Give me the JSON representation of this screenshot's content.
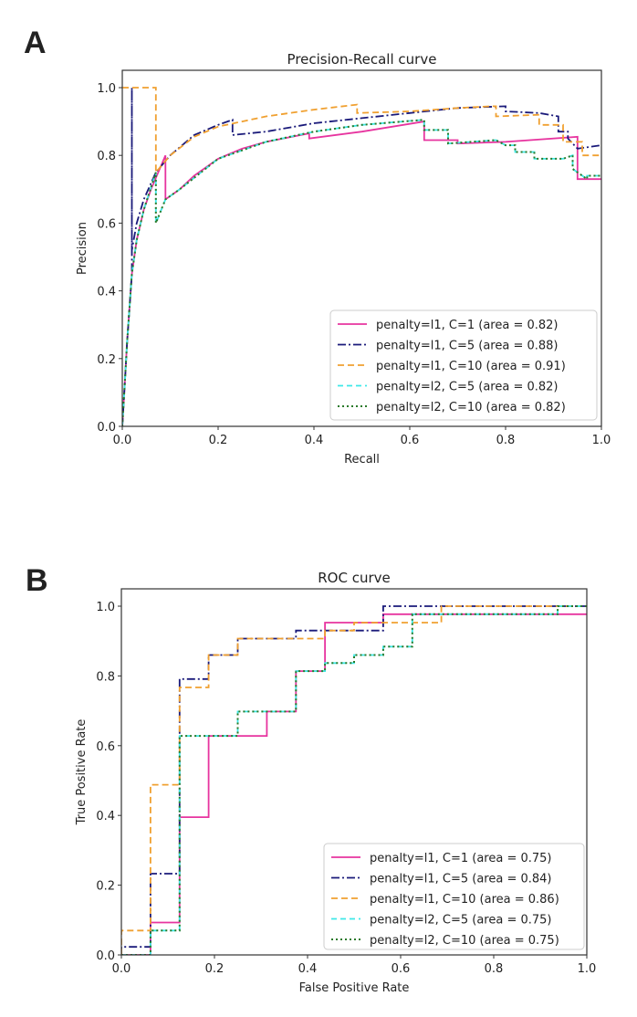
{
  "panels": {
    "a": "A",
    "b": "B"
  },
  "series_styles": [
    {
      "key": "l1_c1",
      "color": "#e7349f",
      "dash": ""
    },
    {
      "key": "l1_c5",
      "color": "#1a1a7a",
      "dash": "9,3,2,3"
    },
    {
      "key": "l1_c10",
      "color": "#f0a030",
      "dash": "7,4"
    },
    {
      "key": "l2_c5",
      "color": "#3ee8e8",
      "dash": "6,4"
    },
    {
      "key": "l2_c10",
      "color": "#2a7a2a",
      "dash": "2,3"
    }
  ],
  "chart_data": [
    {
      "type": "line",
      "title": "Precision-Recall curve",
      "xlabel": "Recall",
      "ylabel": "Precision",
      "xlim": [
        0.0,
        1.0
      ],
      "ylim": [
        0.0,
        1.05
      ],
      "xticks": [
        "0.0",
        "0.2",
        "0.4",
        "0.6",
        "0.8",
        "1.0"
      ],
      "yticks": [
        "0.0",
        "0.2",
        "0.4",
        "0.6",
        "0.8",
        "1.0"
      ],
      "legend_position": "lower-right",
      "series": [
        {
          "name": "penalty=l1, C=1 (area = 0.82)",
          "points": [
            [
              0,
              0
            ],
            [
              0.005,
              0.12
            ],
            [
              0.01,
              0.25
            ],
            [
              0.02,
              0.45
            ],
            [
              0.03,
              0.55
            ],
            [
              0.045,
              0.64
            ],
            [
              0.06,
              0.7
            ],
            [
              0.075,
              0.75
            ],
            [
              0.09,
              0.8
            ],
            [
              0.09,
              0.67
            ],
            [
              0.12,
              0.7
            ],
            [
              0.15,
              0.74
            ],
            [
              0.2,
              0.79
            ],
            [
              0.25,
              0.82
            ],
            [
              0.3,
              0.84
            ],
            [
              0.39,
              0.865
            ],
            [
              0.39,
              0.85
            ],
            [
              0.5,
              0.87
            ],
            [
              0.63,
              0.9
            ],
            [
              0.63,
              0.845
            ],
            [
              0.7,
              0.845
            ],
            [
              0.7,
              0.835
            ],
            [
              0.8,
              0.84
            ],
            [
              0.95,
              0.855
            ],
            [
              0.95,
              0.73
            ],
            [
              1.0,
              0.73
            ]
          ]
        },
        {
          "name": "penalty=l1, C=5 (area = 0.88)",
          "points": [
            [
              0,
              0
            ],
            [
              0.005,
              0.12
            ],
            [
              0.01,
              0.25
            ],
            [
              0.02,
              0.45
            ],
            [
              0.02,
              1.0
            ],
            [
              0.02,
              0.52
            ],
            [
              0.03,
              0.6
            ],
            [
              0.045,
              0.67
            ],
            [
              0.07,
              0.75
            ],
            [
              0.1,
              0.8
            ],
            [
              0.15,
              0.86
            ],
            [
              0.2,
              0.89
            ],
            [
              0.23,
              0.905
            ],
            [
              0.23,
              0.86
            ],
            [
              0.3,
              0.87
            ],
            [
              0.4,
              0.895
            ],
            [
              0.5,
              0.91
            ],
            [
              0.6,
              0.925
            ],
            [
              0.7,
              0.94
            ],
            [
              0.8,
              0.945
            ],
            [
              0.8,
              0.93
            ],
            [
              0.87,
              0.925
            ],
            [
              0.91,
              0.915
            ],
            [
              0.91,
              0.87
            ],
            [
              0.93,
              0.87
            ],
            [
              0.93,
              0.85
            ],
            [
              0.95,
              0.82
            ],
            [
              1.0,
              0.83
            ]
          ]
        },
        {
          "name": "penalty=l1, C=10 (area = 0.91)",
          "points": [
            [
              0,
              1.0
            ],
            [
              0.07,
              1.0
            ],
            [
              0.07,
              0.75
            ],
            [
              0.1,
              0.8
            ],
            [
              0.15,
              0.855
            ],
            [
              0.2,
              0.885
            ],
            [
              0.3,
              0.915
            ],
            [
              0.4,
              0.935
            ],
            [
              0.49,
              0.95
            ],
            [
              0.49,
              0.925
            ],
            [
              0.6,
              0.93
            ],
            [
              0.7,
              0.94
            ],
            [
              0.77,
              0.945
            ],
            [
              0.78,
              0.945
            ],
            [
              0.78,
              0.915
            ],
            [
              0.87,
              0.92
            ],
            [
              0.87,
              0.89
            ],
            [
              0.92,
              0.89
            ],
            [
              0.92,
              0.84
            ],
            [
              0.96,
              0.84
            ],
            [
              0.96,
              0.8
            ],
            [
              1.0,
              0.8
            ]
          ]
        },
        {
          "name": "penalty=l2, C=5 (area = 0.82)",
          "points": [
            [
              0,
              0
            ],
            [
              0.005,
              0.12
            ],
            [
              0.01,
              0.25
            ],
            [
              0.02,
              0.45
            ],
            [
              0.03,
              0.55
            ],
            [
              0.045,
              0.64
            ],
            [
              0.07,
              0.75
            ],
            [
              0.07,
              0.6
            ],
            [
              0.09,
              0.67
            ],
            [
              0.12,
              0.7
            ],
            [
              0.2,
              0.79
            ],
            [
              0.3,
              0.84
            ],
            [
              0.4,
              0.87
            ],
            [
              0.5,
              0.89
            ],
            [
              0.63,
              0.905
            ],
            [
              0.63,
              0.875
            ],
            [
              0.68,
              0.875
            ],
            [
              0.68,
              0.835
            ],
            [
              0.78,
              0.845
            ],
            [
              0.8,
              0.83
            ],
            [
              0.82,
              0.83
            ],
            [
              0.82,
              0.81
            ],
            [
              0.86,
              0.81
            ],
            [
              0.86,
              0.79
            ],
            [
              0.92,
              0.79
            ],
            [
              0.94,
              0.8
            ],
            [
              0.94,
              0.76
            ],
            [
              0.97,
              0.73
            ],
            [
              0.97,
              0.74
            ],
            [
              1.0,
              0.74
            ]
          ]
        },
        {
          "name": "penalty=l2, C=10 (area = 0.82)",
          "points": [
            [
              0,
              0
            ],
            [
              0.005,
              0.12
            ],
            [
              0.01,
              0.25
            ],
            [
              0.02,
              0.45
            ],
            [
              0.03,
              0.55
            ],
            [
              0.045,
              0.64
            ],
            [
              0.07,
              0.75
            ],
            [
              0.07,
              0.6
            ],
            [
              0.09,
              0.67
            ],
            [
              0.12,
              0.7
            ],
            [
              0.2,
              0.79
            ],
            [
              0.3,
              0.84
            ],
            [
              0.4,
              0.87
            ],
            [
              0.5,
              0.89
            ],
            [
              0.63,
              0.905
            ],
            [
              0.63,
              0.875
            ],
            [
              0.68,
              0.875
            ],
            [
              0.68,
              0.835
            ],
            [
              0.78,
              0.845
            ],
            [
              0.8,
              0.83
            ],
            [
              0.82,
              0.83
            ],
            [
              0.82,
              0.81
            ],
            [
              0.86,
              0.81
            ],
            [
              0.86,
              0.79
            ],
            [
              0.92,
              0.79
            ],
            [
              0.94,
              0.8
            ],
            [
              0.94,
              0.76
            ],
            [
              0.97,
              0.73
            ],
            [
              0.97,
              0.74
            ],
            [
              1.0,
              0.74
            ]
          ]
        }
      ]
    },
    {
      "type": "line",
      "title": "ROC curve",
      "xlabel": "False Positive Rate",
      "ylabel": "True Positive Rate",
      "xlim": [
        0.0,
        1.0
      ],
      "ylim": [
        0.0,
        1.05
      ],
      "xticks": [
        "0.0",
        "0.2",
        "0.4",
        "0.6",
        "0.8",
        "1.0"
      ],
      "yticks": [
        "0.0",
        "0.2",
        "0.4",
        "0.6",
        "0.8",
        "1.0"
      ],
      "legend_position": "lower-right",
      "series": [
        {
          "name": "penalty=l1, C=1 (area = 0.75)",
          "points": [
            [
              0,
              0
            ],
            [
              0.0625,
              0
            ],
            [
              0.0625,
              0.093
            ],
            [
              0.125,
              0.093
            ],
            [
              0.125,
              0.395
            ],
            [
              0.1875,
              0.395
            ],
            [
              0.1875,
              0.628
            ],
            [
              0.3125,
              0.628
            ],
            [
              0.3125,
              0.698
            ],
            [
              0.375,
              0.698
            ],
            [
              0.375,
              0.814
            ],
            [
              0.4375,
              0.814
            ],
            [
              0.4375,
              0.953
            ],
            [
              0.5625,
              0.953
            ],
            [
              0.5625,
              0.977
            ],
            [
              1.0,
              0.977
            ]
          ]
        },
        {
          "name": "penalty=l1, C=5 (area = 0.84)",
          "points": [
            [
              0,
              0
            ],
            [
              0,
              0.023
            ],
            [
              0.0625,
              0.023
            ],
            [
              0.0625,
              0.233
            ],
            [
              0.125,
              0.233
            ],
            [
              0.125,
              0.791
            ],
            [
              0.1875,
              0.791
            ],
            [
              0.1875,
              0.86
            ],
            [
              0.25,
              0.86
            ],
            [
              0.25,
              0.907
            ],
            [
              0.375,
              0.907
            ],
            [
              0.375,
              0.93
            ],
            [
              0.5625,
              0.93
            ],
            [
              0.5625,
              1.0
            ],
            [
              1.0,
              1.0
            ]
          ]
        },
        {
          "name": "penalty=l1, C=10 (area = 0.86)",
          "points": [
            [
              0,
              0
            ],
            [
              0,
              0.07
            ],
            [
              0.0625,
              0.07
            ],
            [
              0.0625,
              0.488
            ],
            [
              0.125,
              0.488
            ],
            [
              0.125,
              0.767
            ],
            [
              0.1875,
              0.767
            ],
            [
              0.1875,
              0.86
            ],
            [
              0.25,
              0.86
            ],
            [
              0.25,
              0.907
            ],
            [
              0.4375,
              0.907
            ],
            [
              0.4375,
              0.93
            ],
            [
              0.5,
              0.93
            ],
            [
              0.5,
              0.953
            ],
            [
              0.6875,
              0.953
            ],
            [
              0.6875,
              1.0
            ],
            [
              1.0,
              1.0
            ]
          ]
        },
        {
          "name": "penalty=l2, C=5 (area = 0.75)",
          "points": [
            [
              0,
              0
            ],
            [
              0.0625,
              0
            ],
            [
              0.0625,
              0.07
            ],
            [
              0.125,
              0.07
            ],
            [
              0.125,
              0.628
            ],
            [
              0.25,
              0.628
            ],
            [
              0.25,
              0.698
            ],
            [
              0.375,
              0.698
            ],
            [
              0.375,
              0.814
            ],
            [
              0.4375,
              0.814
            ],
            [
              0.4375,
              0.837
            ],
            [
              0.5,
              0.837
            ],
            [
              0.5,
              0.86
            ],
            [
              0.5625,
              0.86
            ],
            [
              0.5625,
              0.884
            ],
            [
              0.625,
              0.884
            ],
            [
              0.625,
              0.977
            ],
            [
              0.9375,
              0.977
            ],
            [
              0.9375,
              1.0
            ],
            [
              1.0,
              1.0
            ]
          ]
        },
        {
          "name": "penalty=l2, C=10 (area = 0.75)",
          "points": [
            [
              0,
              0
            ],
            [
              0.0625,
              0
            ],
            [
              0.0625,
              0.07
            ],
            [
              0.125,
              0.07
            ],
            [
              0.125,
              0.628
            ],
            [
              0.25,
              0.628
            ],
            [
              0.25,
              0.698
            ],
            [
              0.375,
              0.698
            ],
            [
              0.375,
              0.814
            ],
            [
              0.4375,
              0.814
            ],
            [
              0.4375,
              0.837
            ],
            [
              0.5,
              0.837
            ],
            [
              0.5,
              0.86
            ],
            [
              0.5625,
              0.86
            ],
            [
              0.5625,
              0.884
            ],
            [
              0.625,
              0.884
            ],
            [
              0.625,
              0.977
            ],
            [
              0.9375,
              0.977
            ],
            [
              0.9375,
              1.0
            ],
            [
              1.0,
              1.0
            ]
          ]
        }
      ]
    }
  ]
}
